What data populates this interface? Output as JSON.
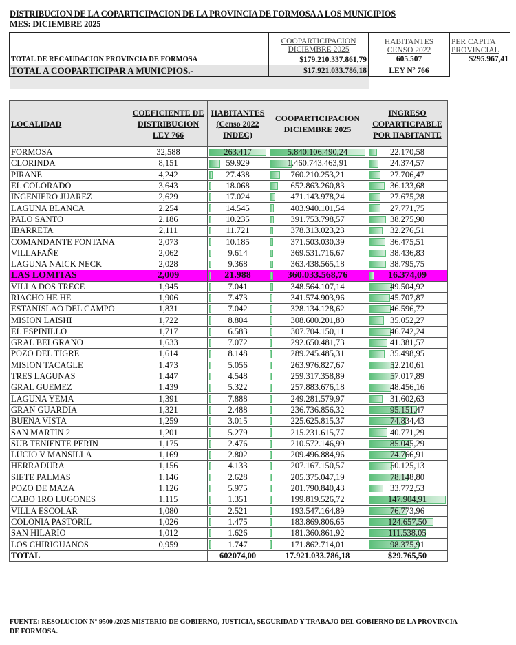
{
  "title": "DISTRIBUCION DE LA COPARTICIPACION DE LA PROVINCIA DE FORMOSA A LOS MUNICIPIOS",
  "subtitle": "MES: DICIEMBRE 2025",
  "summary": {
    "col_coop": [
      "COOPARTICIPACION",
      "DICIEMBRE  2025"
    ],
    "col_hab": [
      "HABITANTES",
      "CENSO 2022"
    ],
    "col_per": [
      "PER CAPITA",
      "PROVINCIAL"
    ],
    "row1_label": "TOTAL DE RECAUDACION PROVINCIA DE FORMOSA",
    "row1_coop": "$179.210.337.861,79",
    "row1_hab": "605.507",
    "row1_per": "$295.967,41",
    "row2_label": "TOTAL A COOPARTICIPAR A MUNICPIOS.-",
    "row2_coop": "$17.921.033.786,18",
    "row2_ley": "LEY Nº 766"
  },
  "colors": {
    "highlight": "#ff00ff",
    "databar": "#5cbf7a",
    "header_bg": "#e4e4e4"
  },
  "table": {
    "headers": [
      "LOCALIDAD",
      "COEFICIENTE DE DISTRIBUCION LEY 766",
      "HABITANTES (Censo 2022 INDEC)",
      "COOPARTICIPACION DICIEMBRE 2025",
      "INGRESO COPARTICPABLE POR HABITANTE"
    ],
    "rows": [
      {
        "loc": "FORMOSA",
        "coef": "32,588",
        "hab": "263.417",
        "coop": "5.840.106.490,24",
        "ing": "22.170,58"
      },
      {
        "loc": "CLORINDA",
        "coef": "8,151",
        "hab": "59.929",
        "coop": "1.460.743.463,91",
        "ing": "24.374,57"
      },
      {
        "loc": "PIRANE",
        "coef": "4,242",
        "hab": "27.438",
        "coop": "760.210.253,21",
        "ing": "27.706,47"
      },
      {
        "loc": "EL COLORADO",
        "coef": "3,643",
        "hab": "18.068",
        "coop": "652.863.260,83",
        "ing": "36.133,68"
      },
      {
        "loc": "INGENIERO JUAREZ",
        "coef": "2,629",
        "hab": "17.024",
        "coop": "471.143.978,24",
        "ing": "27.675,28"
      },
      {
        "loc": "LAGUNA BLANCA",
        "coef": "2,254",
        "hab": "14.545",
        "coop": "403.940.101,54",
        "ing": "27.771,75"
      },
      {
        "loc": "PALO SANTO",
        "coef": "2,186",
        "hab": "10.235",
        "coop": "391.753.798,57",
        "ing": "38.275,90"
      },
      {
        "loc": "IBARRETA",
        "coef": "2,111",
        "hab": "11.721",
        "coop": "378.313.023,23",
        "ing": "32.276,51"
      },
      {
        "loc": "COMANDANTE FONTANA",
        "coef": "2,073",
        "hab": "10.185",
        "coop": "371.503.030,39",
        "ing": "36.475,51"
      },
      {
        "loc": "VILLAFAÑE",
        "coef": "2,062",
        "hab": "9.614",
        "coop": "369.531.716,67",
        "ing": "38.436,83"
      },
      {
        "loc": "LAGUNA NAICK NECK",
        "coef": "2,028",
        "hab": "9.368",
        "coop": "363.438.565,18",
        "ing": "38.795,75"
      },
      {
        "loc": "LAS LOMITAS",
        "coef": "2,009",
        "hab": "21.988",
        "coop": "360.033.568,76",
        "ing": "16.374,09",
        "highlight": true
      },
      {
        "loc": "VILLA DOS TRECE",
        "coef": "1,945",
        "hab": "7.041",
        "coop": "348.564.107,14",
        "ing": "49.504,92"
      },
      {
        "loc": "RIACHO HE HE",
        "coef": "1,906",
        "hab": "7.473",
        "coop": "341.574.903,96",
        "ing": "45.707,87"
      },
      {
        "loc": "ESTANISLAO DEL CAMPO",
        "coef": "1,831",
        "hab": "7.042",
        "coop": "328.134.128,62",
        "ing": "46.596,72"
      },
      {
        "loc": "MISION LAISHI",
        "coef": "1,722",
        "hab": "8.804",
        "coop": "308.600.201,80",
        "ing": "35.052,27"
      },
      {
        "loc": "EL ESPINILLO",
        "coef": "1,717",
        "hab": "6.583",
        "coop": "307.704.150,11",
        "ing": "46.742,24"
      },
      {
        "loc": "GRAL BELGRANO",
        "coef": "1,633",
        "hab": "7.072",
        "coop": "292.650.481,73",
        "ing": "41.381,57"
      },
      {
        "loc": "POZO DEL TIGRE",
        "coef": "1,614",
        "hab": "8.148",
        "coop": "289.245.485,31",
        "ing": "35.498,95"
      },
      {
        "loc": "MISION TACAGLE",
        "coef": "1,473",
        "hab": "5.056",
        "coop": "263.976.827,67",
        "ing": "52.210,61"
      },
      {
        "loc": "TRES LAGUNAS",
        "coef": "1,447",
        "hab": "4.548",
        "coop": "259.317.358,89",
        "ing": "57.017,89"
      },
      {
        "loc": "GRAL GUEMEZ",
        "coef": "1,439",
        "hab": "5.322",
        "coop": "257.883.676,18",
        "ing": "48.456,16"
      },
      {
        "loc": "LAGUNA YEMA",
        "coef": "1,391",
        "hab": "7.888",
        "coop": "249.281.579,97",
        "ing": "31.602,63"
      },
      {
        "loc": "GRAN GUARDIA",
        "coef": "1,321",
        "hab": "2.488",
        "coop": "236.736.856,32",
        "ing": "95.151,47"
      },
      {
        "loc": "BUENA VISTA",
        "coef": "1,259",
        "hab": "3.015",
        "coop": "225.625.815,37",
        "ing": "74.834,43"
      },
      {
        "loc": "SAN MARTIN 2",
        "coef": "1,201",
        "hab": "5.279",
        "coop": "215.231.615,77",
        "ing": "40.771,29"
      },
      {
        "loc": "SUB TENIENTE PERIN",
        "coef": "1,175",
        "hab": "2.476",
        "coop": "210.572.146,99",
        "ing": "85.045,29"
      },
      {
        "loc": "LUCIO V MANSILLA",
        "coef": "1,169",
        "hab": "2.802",
        "coop": "209.496.884,96",
        "ing": "74.766,91"
      },
      {
        "loc": "HERRADURA",
        "coef": "1,156",
        "hab": "4.133",
        "coop": "207.167.150,57",
        "ing": "50.125,13"
      },
      {
        "loc": "SIETE PALMAS",
        "coef": "1,146",
        "hab": "2.628",
        "coop": "205.375.047,19",
        "ing": "78.148,80"
      },
      {
        "loc": "POZO DE MAZA",
        "coef": "1,126",
        "hab": "5.975",
        "coop": "201.790.840,43",
        "ing": "33.772,53"
      },
      {
        "loc": "CABO 1RO LUGONES",
        "coef": "1,115",
        "hab": "1.351",
        "coop": "199.819.526,72",
        "ing": "147.904,91"
      },
      {
        "loc": "VILLA ESCOLAR",
        "coef": "1,080",
        "hab": "2.521",
        "coop": "193.547.164,89",
        "ing": "76.773,96"
      },
      {
        "loc": "COLONIA PASTORIL",
        "coef": "1,026",
        "hab": "1.475",
        "coop": "183.869.806,65",
        "ing": "124.657,50"
      },
      {
        "loc": "SAN HILARIO",
        "coef": "1,012",
        "hab": "1.626",
        "coop": "181.360.861,92",
        "ing": "111.538,05"
      },
      {
        "loc": "LOS CHIRIGUANOS",
        "coef": "0,959",
        "hab": "1.747",
        "coop": "171.862.714,01",
        "ing": "98.375,91"
      }
    ],
    "total": {
      "loc": "TOTAL",
      "coef": "",
      "hab": "602074,00",
      "coop": "17.921.033.786,18",
      "ing": "$29.765,50"
    }
  },
  "footer": "FUENTE: RESOLUCION N° 9500 /2025 MISTERIO DE GOBIERNO, JUSTICIA, SEGURIDAD Y TRABAJO DEL GOBIERNO DE LA PROVINCIA DE FORMOSA."
}
